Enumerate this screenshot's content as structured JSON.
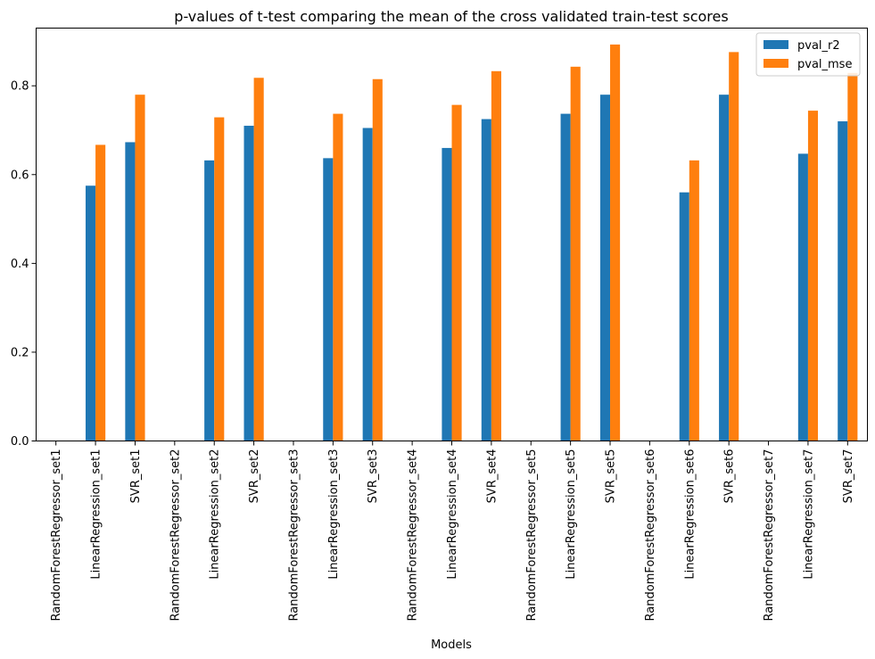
{
  "chart_data": {
    "type": "bar",
    "title": "p-values of t-test comparing the mean of the cross validated train-test scores",
    "xlabel": "Models",
    "ylabel": "",
    "ylim": [
      0,
      0.93
    ],
    "yticks": [
      0.0,
      0.2,
      0.4,
      0.6,
      0.8
    ],
    "ytick_labels": [
      "0.0",
      "0.2",
      "0.4",
      "0.6",
      "0.8"
    ],
    "grid": false,
    "legend_position": "top-right",
    "categories": [
      "RandomForestRegressor_set1",
      "LinearRegression_set1",
      "SVR_set1",
      "RandomForestRegressor_set2",
      "LinearRegression_set2",
      "SVR_set2",
      "RandomForestRegressor_set3",
      "LinearRegression_set3",
      "SVR_set3",
      "RandomForestRegressor_set4",
      "LinearRegression_set4",
      "SVR_set4",
      "RandomForestRegressor_set5",
      "LinearRegression_set5",
      "SVR_set5",
      "RandomForestRegressor_set6",
      "LinearRegression_set6",
      "SVR_set6",
      "RandomForestRegressor_set7",
      "LinearRegression_set7",
      "SVR_set7"
    ],
    "series": [
      {
        "name": "pval_r2",
        "color": "#1f77b4",
        "values": [
          0.0,
          0.575,
          0.673,
          0.0,
          0.632,
          0.71,
          0.0,
          0.637,
          0.705,
          0.0,
          0.66,
          0.725,
          0.0,
          0.737,
          0.78,
          0.0,
          0.56,
          0.78,
          0.0,
          0.647,
          0.72
        ]
      },
      {
        "name": "pval_mse",
        "color": "#ff7f0e",
        "values": [
          0.0,
          0.667,
          0.78,
          0.0,
          0.729,
          0.818,
          0.0,
          0.737,
          0.815,
          0.0,
          0.757,
          0.833,
          0.0,
          0.843,
          0.893,
          0.0,
          0.632,
          0.876,
          0.0,
          0.744,
          0.829
        ]
      }
    ]
  }
}
